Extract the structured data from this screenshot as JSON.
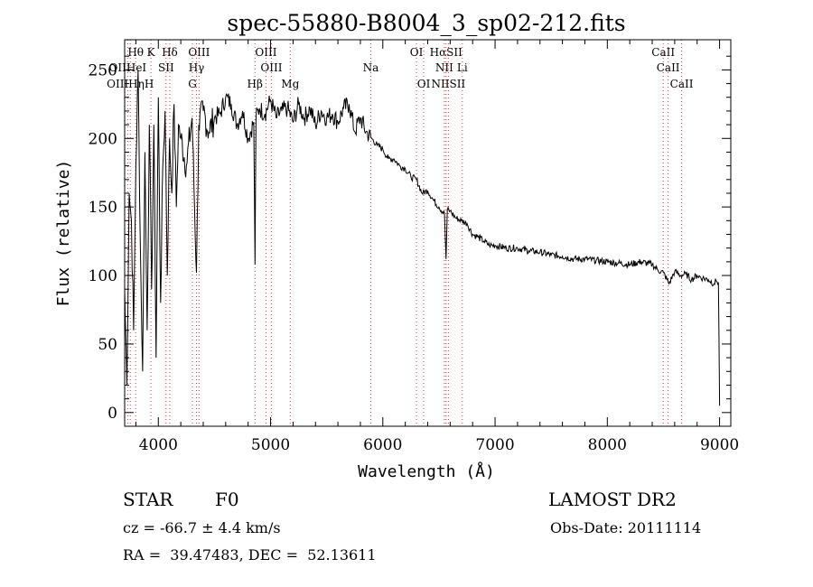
{
  "chart_data": {
    "type": "line",
    "title": "spec-55880-B8004_3_sp02-212.fits",
    "xlabel": "Wavelength (Å)",
    "ylabel": "Flux (relative)",
    "xlim": [
      3700,
      9100
    ],
    "ylim": [
      -10,
      272
    ],
    "xticks": [
      4000,
      5000,
      6000,
      7000,
      8000,
      9000
    ],
    "yticks": [
      0,
      50,
      100,
      150,
      200,
      250
    ],
    "grid": false,
    "series": [
      {
        "color": "#000000",
        "x": [
          3700,
          3720,
          3740,
          3760,
          3780,
          3800,
          3820,
          3840,
          3860,
          3880,
          3900,
          3920,
          3940,
          3960,
          3980,
          4000,
          4020,
          4040,
          4060,
          4080,
          4100,
          4120,
          4140,
          4160,
          4180,
          4200,
          4250,
          4300,
          4340,
          4360,
          4400,
          4450,
          4500,
          4550,
          4600,
          4650,
          4700,
          4750,
          4800,
          4850,
          4861,
          4870,
          4900,
          4950,
          5000,
          5050,
          5100,
          5150,
          5200,
          5250,
          5300,
          5350,
          5400,
          5450,
          5500,
          5550,
          5600,
          5650,
          5700,
          5750,
          5800,
          5850,
          5900,
          5950,
          6000,
          6050,
          6100,
          6150,
          6200,
          6250,
          6300,
          6350,
          6400,
          6450,
          6500,
          6550,
          6563,
          6575,
          6600,
          6650,
          6700,
          6750,
          6800,
          6850,
          6900,
          6950,
          7000,
          7100,
          7200,
          7300,
          7400,
          7500,
          7600,
          7700,
          7800,
          7900,
          8000,
          8100,
          8200,
          8300,
          8400,
          8450,
          8500,
          8550,
          8600,
          8650,
          8700,
          8750,
          8800,
          8850,
          8900,
          8950,
          8970,
          8990,
          9000
        ],
        "y": [
          90,
          20,
          160,
          140,
          60,
          180,
          250,
          120,
          30,
          190,
          60,
          210,
          90,
          210,
          40,
          230,
          80,
          180,
          220,
          100,
          200,
          160,
          225,
          150,
          210,
          200,
          180,
          215,
          102,
          210,
          220,
          205,
          215,
          218,
          230,
          225,
          210,
          220,
          200,
          212,
          108,
          215,
          222,
          218,
          228,
          215,
          220,
          222,
          212,
          225,
          215,
          222,
          210,
          220,
          215,
          218,
          212,
          222,
          225,
          205,
          215,
          205,
          200,
          195,
          192,
          185,
          185,
          180,
          178,
          172,
          170,
          160,
          162,
          155,
          150,
          145,
          112,
          148,
          147,
          142,
          140,
          138,
          130,
          128,
          125,
          122,
          122,
          120,
          120,
          118,
          117,
          115,
          114,
          112,
          112,
          111,
          110,
          109,
          108,
          110,
          108,
          104,
          102,
          94,
          103,
          100,
          101,
          97,
          100,
          98,
          97,
          94,
          96,
          95,
          5
        ]
      }
    ],
    "spectral_lines": [
      {
        "label": "Hθ",
        "x": 3798,
        "row": 1
      },
      {
        "label": "K",
        "x": 3934,
        "row": 1
      },
      {
        "label": "Hδ",
        "x": 4102,
        "row": 1
      },
      {
        "label": "OIII",
        "x": 4363,
        "row": 1
      },
      {
        "label": "OIII",
        "x": 4959,
        "row": 1
      },
      {
        "label": "OI",
        "x": 6300,
        "row": 1
      },
      {
        "label": "HαSII",
        "x": 6563,
        "row": 1
      },
      {
        "label": "CaII",
        "x": 8498,
        "row": 1
      },
      {
        "label": "OIIHeI",
        "x": 3727,
        "row": 2
      },
      {
        "label": "SII",
        "x": 4069,
        "row": 2
      },
      {
        "label": "Hγ",
        "x": 4340,
        "row": 2
      },
      {
        "label": "OIII",
        "x": 5007,
        "row": 2
      },
      {
        "label": "Na",
        "x": 5893,
        "row": 2
      },
      {
        "label": "NII",
        "x": 6548,
        "row": 2
      },
      {
        "label": "Li",
        "x": 6708,
        "row": 2
      },
      {
        "label": "CaII",
        "x": 8542,
        "row": 2
      },
      {
        "label": "OIIIHηH",
        "x": 3750,
        "row": 3
      },
      {
        "label": "G",
        "x": 4304,
        "row": 3
      },
      {
        "label": "Hβ",
        "x": 4861,
        "row": 3
      },
      {
        "label": "Mg",
        "x": 5175,
        "row": 3
      },
      {
        "label": "OI",
        "x": 6364,
        "row": 3
      },
      {
        "label": "NIISII",
        "x": 6584,
        "row": 3
      },
      {
        "label": "CaII",
        "x": 8662,
        "row": 3
      }
    ]
  },
  "info": {
    "object_class": "STAR",
    "subclass": "F0",
    "survey": "LAMOST DR2",
    "redshift": "cz = -66.7 ± 4.4 km/s",
    "obs_date": "Obs-Date: 20111114",
    "coords": "RA =  39.47483, DEC =  52.13611"
  }
}
